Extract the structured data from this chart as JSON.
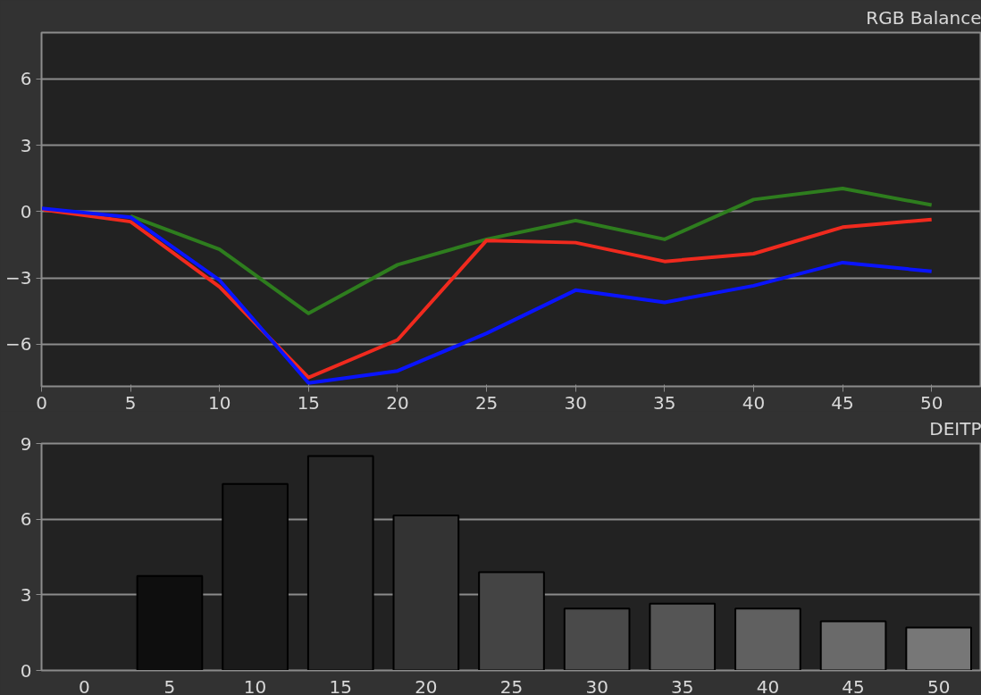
{
  "chart_data": [
    {
      "type": "line",
      "title": "RGB Balance",
      "x": [
        0,
        5,
        10,
        15,
        20,
        25,
        30,
        35,
        40,
        45,
        50
      ],
      "series": [
        {
          "color": "#2e7d1e",
          "values": [
            null,
            -0.2,
            -1.7,
            -4.6,
            -2.4,
            -1.25,
            -0.4,
            -1.25,
            0.55,
            1.05,
            0.3
          ]
        },
        {
          "color": "#f02a1e",
          "values": [
            0.1,
            -0.45,
            -3.4,
            -7.5,
            -5.8,
            -1.3,
            -1.4,
            -2.25,
            -1.9,
            -0.7,
            -0.35
          ]
        },
        {
          "color": "#0a14ff",
          "values": [
            0.15,
            -0.25,
            -3.1,
            -7.75,
            -7.2,
            -5.5,
            -3.55,
            -4.1,
            -3.35,
            -2.3,
            -2.7
          ]
        }
      ],
      "xlim": [
        0,
        52.8
      ],
      "ylim": [
        -7.9,
        8.1
      ],
      "xticks": [
        0,
        5,
        10,
        15,
        20,
        25,
        30,
        35,
        40,
        45,
        50
      ],
      "yticks": [
        -6,
        -3,
        0,
        3,
        6
      ],
      "grid": "y",
      "line_style": "solid"
    },
    {
      "type": "bar",
      "title": "DEITP",
      "categories": [
        "0",
        "5",
        "10",
        "15",
        "20",
        "25",
        "30",
        "35",
        "40",
        "45",
        "50"
      ],
      "values": [
        null,
        3.75,
        7.4,
        8.5,
        6.15,
        3.9,
        2.45,
        2.65,
        2.45,
        1.95,
        1.7
      ],
      "colors": [
        "#000000",
        "#0e0e0e",
        "#1a1a1a",
        "#262626",
        "#333333",
        "#444444",
        "#4a4a4a",
        "#555555",
        "#606060",
        "#6a6a6a",
        "#777777"
      ],
      "ylim": [
        0,
        9
      ],
      "yticks": [
        0,
        3,
        6,
        9
      ],
      "grid": "y"
    }
  ]
}
